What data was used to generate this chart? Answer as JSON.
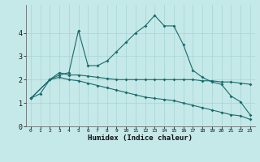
{
  "title": "",
  "xlabel": "Humidex (Indice chaleur)",
  "ylabel": "",
  "bg_color": "#c5e8e8",
  "line_color": "#1a6b6b",
  "grid_color": "#a8d4d4",
  "xlim": [
    -0.5,
    23.5
  ],
  "ylim": [
    0,
    5.2
  ],
  "xticks": [
    0,
    1,
    2,
    3,
    4,
    5,
    6,
    7,
    8,
    9,
    10,
    11,
    12,
    13,
    14,
    15,
    16,
    17,
    18,
    19,
    20,
    21,
    22,
    23
  ],
  "yticks": [
    0,
    1,
    2,
    3,
    4
  ],
  "series": [
    {
      "x": [
        0,
        1,
        2,
        3,
        4,
        5,
        6,
        7,
        8,
        9,
        10,
        11,
        12,
        13,
        14,
        15,
        16,
        17,
        18,
        19,
        20,
        21,
        22,
        23
      ],
      "y": [
        1.2,
        1.4,
        2.0,
        2.2,
        2.3,
        4.1,
        2.6,
        2.6,
        2.8,
        3.2,
        3.6,
        4.0,
        4.3,
        4.75,
        4.3,
        4.3,
        3.5,
        2.4,
        2.1,
        1.9,
        1.8,
        1.3,
        1.05,
        0.5
      ]
    },
    {
      "x": [
        0,
        2,
        3,
        4,
        5,
        6,
        7,
        8,
        9,
        10,
        11,
        12,
        13,
        14,
        15,
        16,
        17,
        18,
        19,
        20,
        21,
        22,
        23
      ],
      "y": [
        1.2,
        2.0,
        2.3,
        2.2,
        2.2,
        2.15,
        2.1,
        2.05,
        2.0,
        2.0,
        2.0,
        2.0,
        2.0,
        2.0,
        2.0,
        2.0,
        2.0,
        1.95,
        1.95,
        1.9,
        1.9,
        1.85,
        1.8
      ]
    },
    {
      "x": [
        0,
        2,
        3,
        4,
        5,
        6,
        7,
        8,
        9,
        10,
        11,
        12,
        13,
        14,
        15,
        16,
        17,
        18,
        19,
        20,
        21,
        22,
        23
      ],
      "y": [
        1.2,
        2.0,
        2.1,
        2.0,
        1.95,
        1.85,
        1.75,
        1.65,
        1.55,
        1.45,
        1.35,
        1.25,
        1.2,
        1.15,
        1.1,
        1.0,
        0.9,
        0.8,
        0.7,
        0.6,
        0.5,
        0.45,
        0.3
      ]
    }
  ]
}
